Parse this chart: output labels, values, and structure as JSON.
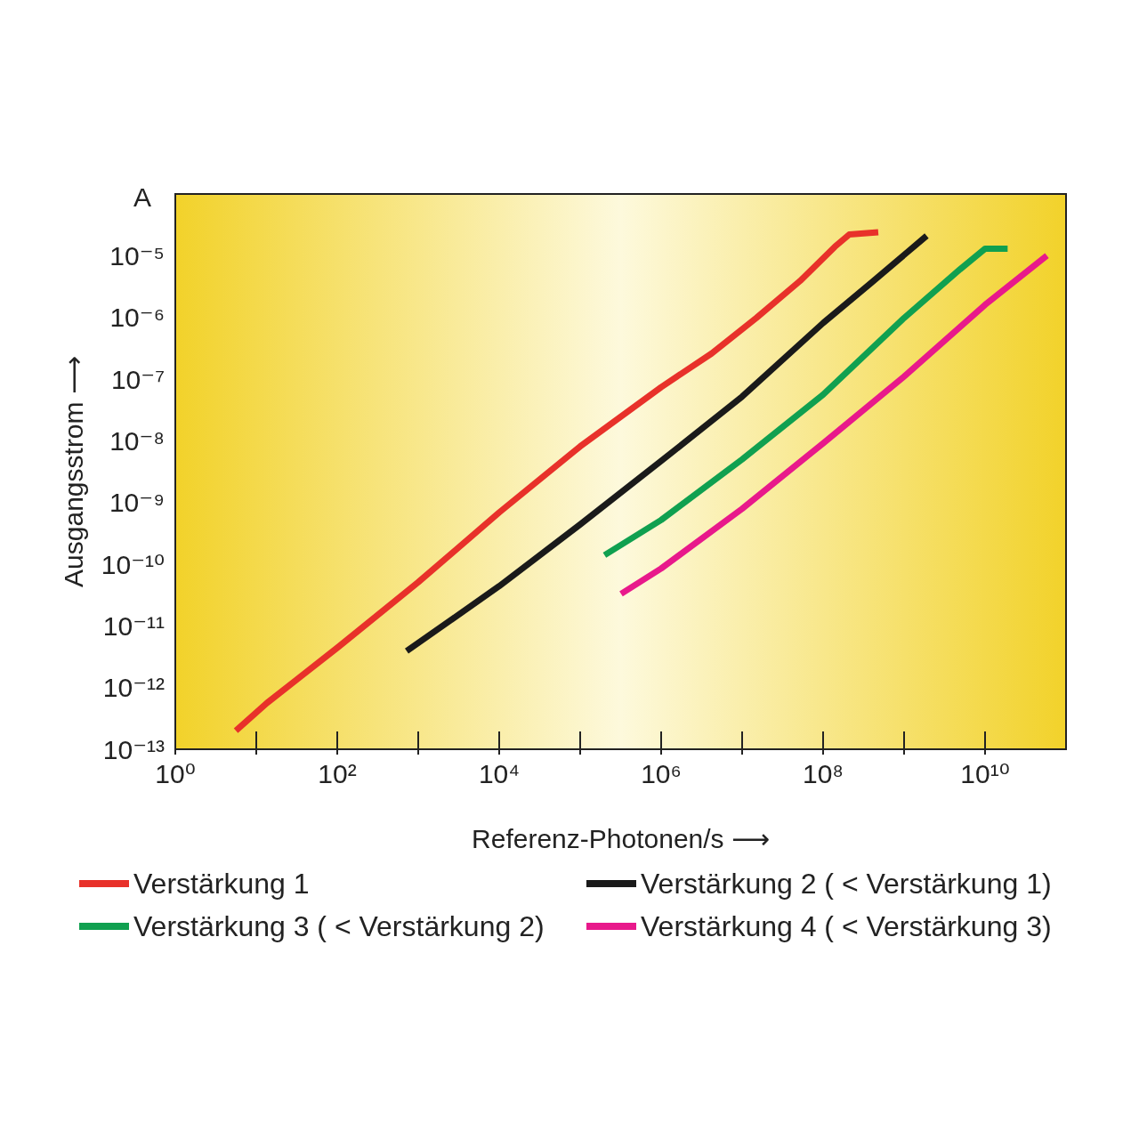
{
  "chart_data": {
    "type": "line",
    "xlabel": "Referenz-Photonen/s ⟶",
    "ylabel": "Ausgangsstrom ⟶",
    "annotations": [
      "A"
    ],
    "log": "xy",
    "grid": false,
    "legend": "bottom",
    "marker": "none",
    "line_style": "solid",
    "xlim": [
      1,
      100000000000
    ],
    "ylim": [
      1e-13,
      0.0001
    ],
    "xticks": [
      {
        "value": 1,
        "label": "10⁰"
      },
      {
        "value": 10,
        "label": null
      },
      {
        "value": 100,
        "label": "10²"
      },
      {
        "value": 1000,
        "label": null
      },
      {
        "value": 10000,
        "label": "10⁴"
      },
      {
        "value": 100000,
        "label": null
      },
      {
        "value": 1000000,
        "label": "10⁶"
      },
      {
        "value": 10000000,
        "label": null
      },
      {
        "value": 100000000,
        "label": "10⁸"
      },
      {
        "value": 1000000000,
        "label": null
      },
      {
        "value": 10000000000,
        "label": "10¹⁰"
      }
    ],
    "yticks": [
      {
        "value": 1e-13,
        "label": "10⁻¹³"
      },
      {
        "value": 1e-12,
        "label": "10⁻¹²"
      },
      {
        "value": 1e-11,
        "label": "10⁻¹¹"
      },
      {
        "value": 1e-10,
        "label": "10⁻¹⁰"
      },
      {
        "value": 1e-09,
        "label": "10⁻⁹"
      },
      {
        "value": 1e-08,
        "label": "10⁻⁸"
      },
      {
        "value": 1e-07,
        "label": "10⁻⁷"
      },
      {
        "value": 1e-06,
        "label": "10⁻⁶"
      },
      {
        "value": 1e-05,
        "label": "10⁻⁵"
      }
    ],
    "series": [
      {
        "name": "Verstärkung 1",
        "color": "#e8312a",
        "x": [
          5.6,
          13.5,
          102,
          1000,
          10000,
          100000,
          1000000,
          4200000,
          15000000,
          52000000,
          140000000,
          210000000,
          480000000
        ],
        "values": [
          2e-13,
          5.6e-13,
          4.5e-12,
          5.1e-11,
          6.9e-10,
          8.1e-09,
          7.4e-08,
          2.6e-07,
          9.8e-07,
          3.9e-06,
          1.4e-05,
          2.2e-05,
          2.4e-05
        ]
      },
      {
        "name": "Verstärkung 2 ( < Verstärkung 1)",
        "color": "#1a1a1a",
        "x": [
          720,
          10000,
          100000,
          1000000,
          10000000,
          100000000,
          400000000,
          1900000000
        ],
        "values": [
          3.9e-12,
          4.4e-11,
          4.4e-10,
          4.7e-09,
          5.2e-08,
          8.1e-07,
          3.7e-06,
          2.1e-05
        ]
      },
      {
        "name": "Verstärkung 3 ( < Verstärkung 2)",
        "color": "#10a050",
        "x": [
          200000,
          1000000,
          10000000,
          100000000,
          1000000000,
          4900000000,
          10000000000,
          19000000000
        ],
        "values": [
          1.4e-10,
          5.2e-10,
          5e-09,
          5.6e-08,
          9.8e-07,
          6e-06,
          1.3e-05,
          1.3e-05
        ]
      },
      {
        "name": "Verstärkung 4 ( < Verstärkung 3)",
        "color": "#e8198b",
        "x": [
          320000,
          1000000,
          10000000,
          100000000,
          1000000000,
          10000000000,
          58000000000
        ],
        "values": [
          3.3e-11,
          8.5e-11,
          7.9e-10,
          9.1e-09,
          1.1e-07,
          1.6e-06,
          1e-05
        ]
      }
    ]
  }
}
